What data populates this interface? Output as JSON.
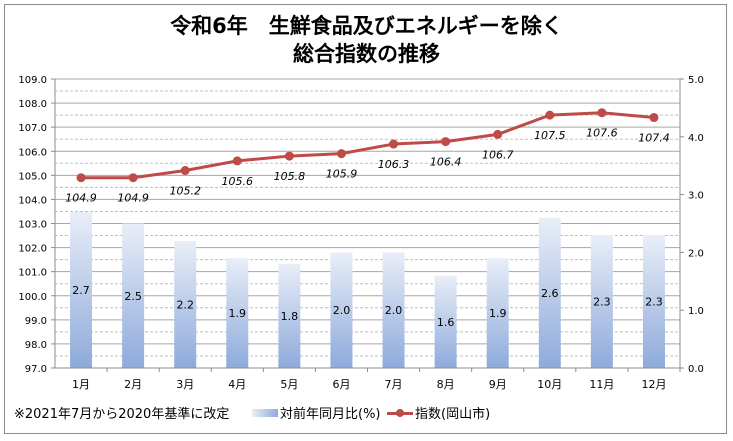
{
  "chart_data": {
    "type": "bar+line",
    "title_line1": "令和6年　生鮮食品及びエネルギーを除く",
    "title_line2": "総合指数の推移",
    "categories": [
      "1月",
      "2月",
      "3月",
      "4月",
      "5月",
      "6月",
      "7月",
      "8月",
      "9月",
      "10月",
      "11月",
      "12月"
    ],
    "series": [
      {
        "name": "対前年同月比(%)",
        "type": "bar",
        "axis": "right",
        "values": [
          2.7,
          2.5,
          2.2,
          1.9,
          1.8,
          2.0,
          2.0,
          1.6,
          1.9,
          2.6,
          2.3,
          2.3
        ]
      },
      {
        "name": "指数(岡山市)",
        "type": "line",
        "axis": "left",
        "values": [
          104.9,
          104.9,
          105.2,
          105.6,
          105.8,
          105.9,
          106.3,
          106.4,
          106.7,
          107.5,
          107.6,
          107.4
        ]
      }
    ],
    "ylim_left": [
      97.0,
      109.0
    ],
    "yticks_left": [
      "97.0",
      "98.0",
      "99.0",
      "100.0",
      "101.0",
      "102.0",
      "103.0",
      "104.0",
      "105.0",
      "106.0",
      "107.0",
      "108.0",
      "109.0"
    ],
    "ylim_right": [
      0.0,
      5.0
    ],
    "yticks_right": [
      "0.0",
      "1.0",
      "2.0",
      "3.0",
      "4.0",
      "5.0"
    ],
    "grid": true,
    "legend_placement": "bottom",
    "note": "※2021年7月から2020年基準に改定",
    "colors": {
      "line": "#be4b48",
      "bar_top": "#e9eef8",
      "bar_bottom": "#8eaadb"
    }
  }
}
